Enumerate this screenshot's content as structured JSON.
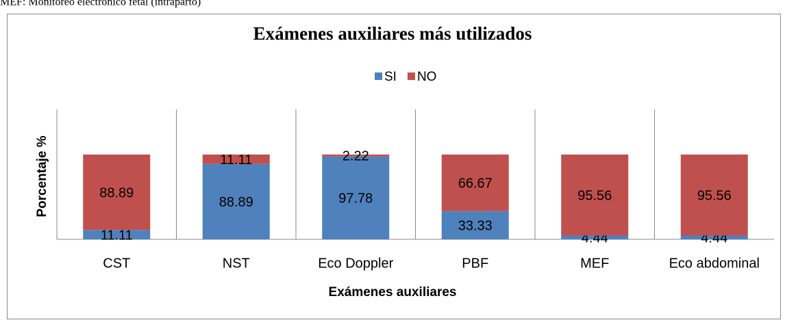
{
  "chart_data": {
    "type": "stacked_bar",
    "caption": "MEF: Monitoreo electrónico fetal (intraparto)",
    "title": "Exámenes auxiliares más utilizados",
    "categories": [
      "CST",
      "NST",
      "Eco Doppler",
      "PBF",
      "MEF",
      "Eco abdominal"
    ],
    "series": [
      {
        "name": "SI",
        "color": "#4f81bd",
        "values": [
          11.11,
          88.89,
          97.78,
          33.33,
          4.44,
          4.44
        ]
      },
      {
        "name": "NO",
        "color": "#c0504d",
        "values": [
          88.89,
          11.11,
          2.22,
          66.67,
          95.56,
          95.56
        ]
      }
    ],
    "ylim": [
      0,
      100
    ],
    "x_axis_label": "Exámenes auxiliares",
    "y_axis_label": "Porcentaje %",
    "legend": "top"
  }
}
